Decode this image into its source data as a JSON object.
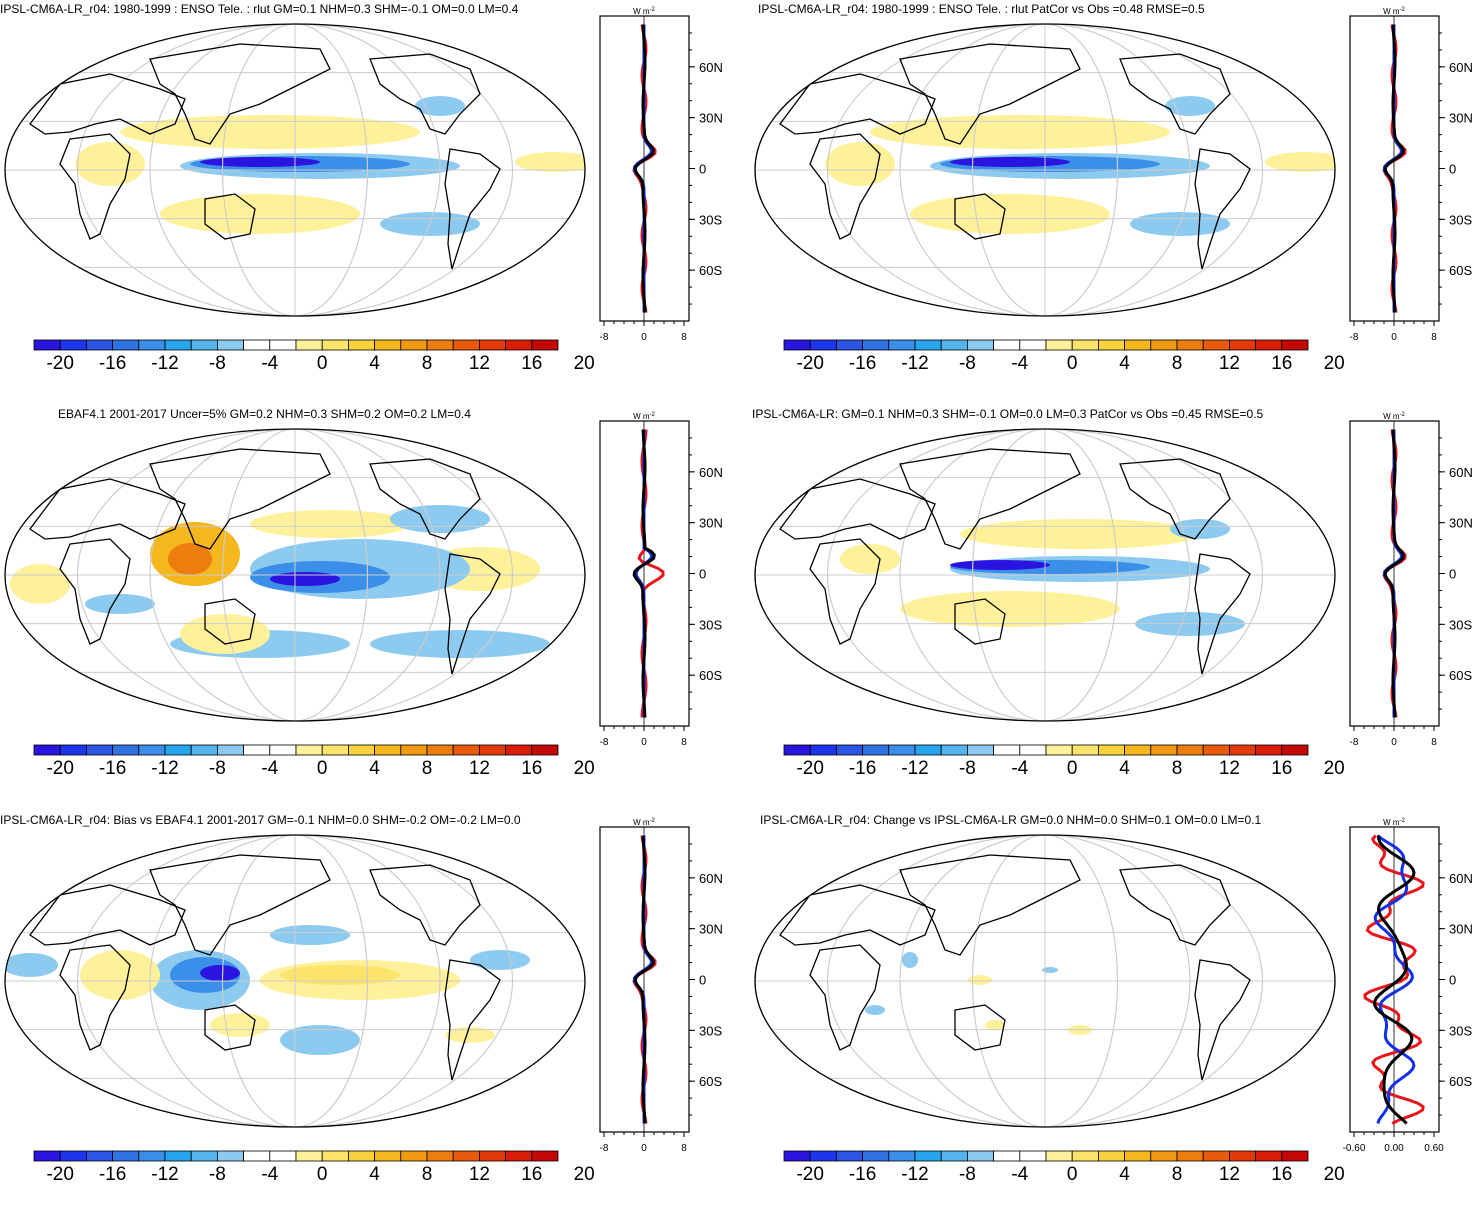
{
  "panels": [
    {
      "title": "IPSL-CM6A-LR_r04: 1980-1999 : ENSO Tele. : rlut GM=0.1 NHM=0.3 SHM=-0.1 OM=0.0 LM=0.4",
      "variant": "model",
      "zonal_ticks": [
        "-8",
        "0",
        "8"
      ]
    },
    {
      "title": "IPSL-CM6A-LR_r04: 1980-1999 : ENSO Tele. : rlut PatCor vs Obs =0.48 RMSE=0.5",
      "variant": "model",
      "zonal_ticks": [
        "-8",
        "0",
        "8"
      ]
    },
    {
      "title": "EBAF4.1 2001-2017 Uncer=5% GM=0.2 NHM=0.3 SHM=0.2 OM=0.2 LM=0.4",
      "variant": "obs",
      "zonal_ticks": [
        "-8",
        "0",
        "8"
      ]
    },
    {
      "title": "IPSL-CM6A-LR: GM=0.1 NHM=0.3 SHM=-0.1 OM=0.0 LM=0.3 PatCor vs Obs =0.45 RMSE=0.5",
      "variant": "model2",
      "zonal_ticks": [
        "-8",
        "0",
        "8"
      ]
    },
    {
      "title": "IPSL-CM6A-LR_r04: Bias vs EBAF4.1 2001-2017 GM=-0.1 NHM=0.0 SHM=-0.2 OM=-0.2 LM=0.0",
      "variant": "bias",
      "zonal_ticks": [
        "-8",
        "0",
        "8"
      ]
    },
    {
      "title": "IPSL-CM6A-LR_r04: Change vs IPSL-CM6A-LR GM=0.0 NHM=0.0 SHM=0.1 OM=0.0 LM=0.1",
      "variant": "change",
      "zonal_ticks": [
        "-0.60",
        "0.00",
        "0.60"
      ]
    }
  ],
  "lat_labels": [
    "60N",
    "30N",
    "0",
    "30S",
    "60S"
  ],
  "units": "W m",
  "units_sup": "-2",
  "colorbar_labels": [
    "-20",
    "-16",
    "-12",
    "-8",
    "-4",
    "0",
    "4",
    "8",
    "12",
    "16",
    "20"
  ],
  "colorbar_colors": [
    "#2a14e0",
    "#1e35ee",
    "#2c55e6",
    "#2f72e4",
    "#3b8fe8",
    "#27a6ef",
    "#55b4ec",
    "#8ccaef",
    "#ffffff",
    "#ffffff",
    "#fff19a",
    "#fbe36c",
    "#f8d33e",
    "#f4b81e",
    "#f09a12",
    "#ec7d0e",
    "#e95a0c",
    "#e23a0a",
    "#d81c08",
    "#c40806"
  ],
  "line_colors": {
    "model": "#000000",
    "obs": "#e8161b",
    "model_red": "#e8161b",
    "alt": "#1230e6"
  }
}
